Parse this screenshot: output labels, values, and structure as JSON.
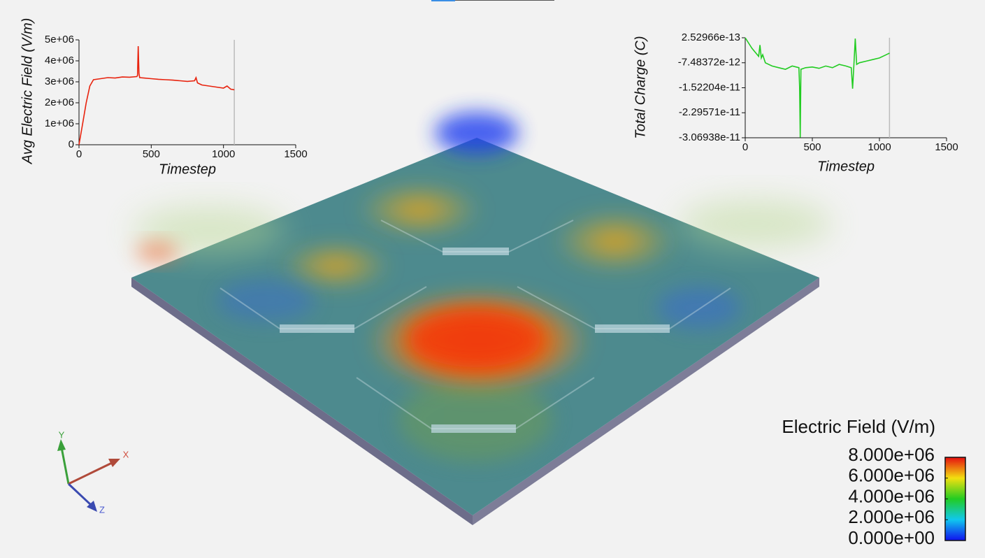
{
  "chart_data": [
    {
      "type": "line",
      "y_label": "Avg Electric Field (V/m)",
      "x_label": "Timestep",
      "x": [
        0,
        25,
        50,
        75,
        100,
        150,
        200,
        250,
        300,
        350,
        400,
        405,
        410,
        415,
        420,
        450,
        500,
        550,
        600,
        650,
        700,
        750,
        800,
        810,
        820,
        850,
        900,
        950,
        1000,
        1025,
        1050,
        1075
      ],
      "series": [
        {
          "name": "Avg Electric Field",
          "color": "#e8230e",
          "values": [
            0,
            1000000,
            2000000,
            2800000,
            3100000,
            3150000,
            3200000,
            3180000,
            3230000,
            3220000,
            3250000,
            3300000,
            4700000,
            3400000,
            3200000,
            3180000,
            3150000,
            3120000,
            3100000,
            3080000,
            3050000,
            3020000,
            3050000,
            3200000,
            2950000,
            2850000,
            2800000,
            2750000,
            2700000,
            2800000,
            2650000,
            2620000
          ]
        }
      ],
      "xlim": [
        0,
        1500
      ],
      "xticks": [
        0,
        500,
        1000,
        1500
      ],
      "ylim": [
        0,
        5000000
      ],
      "yticks": [
        0,
        {
          "value": 1000000,
          "label": "1e+06"
        },
        {
          "value": 2000000,
          "label": "2e+06"
        },
        {
          "value": 3000000,
          "label": "3e+06"
        },
        {
          "value": 4000000,
          "label": "4e+06"
        },
        {
          "value": 5000000,
          "label": "5e+06"
        }
      ],
      "time_marker": 1075
    },
    {
      "type": "line",
      "y_label": "Total Charge (C)",
      "x_label": "Timestep",
      "x": [
        0,
        50,
        100,
        110,
        120,
        130,
        150,
        200,
        250,
        300,
        350,
        400,
        405,
        410,
        415,
        450,
        500,
        550,
        600,
        650,
        700,
        750,
        790,
        800,
        810,
        820,
        830,
        850,
        900,
        950,
        1000,
        1050,
        1075
      ],
      "series": [
        {
          "name": "Total Charge",
          "color": "#22cc22",
          "values": [
            2.5e-13,
            -3e-12,
            -5.5e-12,
            -2e-12,
            -6e-12,
            -5e-12,
            -7.5e-12,
            -8.5e-12,
            -9e-12,
            -9.5e-12,
            -8.5e-12,
            -9e-12,
            -1.5e-11,
            -3.06e-11,
            -9.5e-12,
            -9e-12,
            -8.8e-12,
            -9.2e-12,
            -8.5e-12,
            -9e-12,
            -8e-12,
            -8.5e-12,
            -9e-12,
            -1.55e-11,
            -8e-12,
            0,
            -8e-12,
            -7.5e-12,
            -7e-12,
            -6.5e-12,
            -6e-12,
            -5e-12,
            -4.5e-12
          ]
        }
      ],
      "xlim": [
        0,
        1500
      ],
      "xticks": [
        0,
        500,
        1000,
        1500
      ],
      "ylim": [
        -3.06938e-11,
        2.52966e-13
      ],
      "yticks": [
        2.52966e-13,
        -7.48372e-12,
        -1.52204e-11,
        -2.29571e-11,
        -3.06938e-11
      ],
      "time_marker": 1075
    }
  ],
  "color_legend": {
    "title": "Electric Field (V/m)",
    "range": [
      0,
      8000000
    ],
    "ticks": [
      {
        "value": 8000000,
        "label": "8.000e+06"
      },
      {
        "value": 6000000,
        "label": "6.000e+06"
      },
      {
        "value": 4000000,
        "label": "4.000e+06"
      },
      {
        "value": 2000000,
        "label": "2.000e+06"
      },
      {
        "value": 0,
        "label": "0.000e+00"
      }
    ]
  },
  "axes_triad": {
    "x": "X",
    "y": "Y",
    "z": "Z"
  }
}
